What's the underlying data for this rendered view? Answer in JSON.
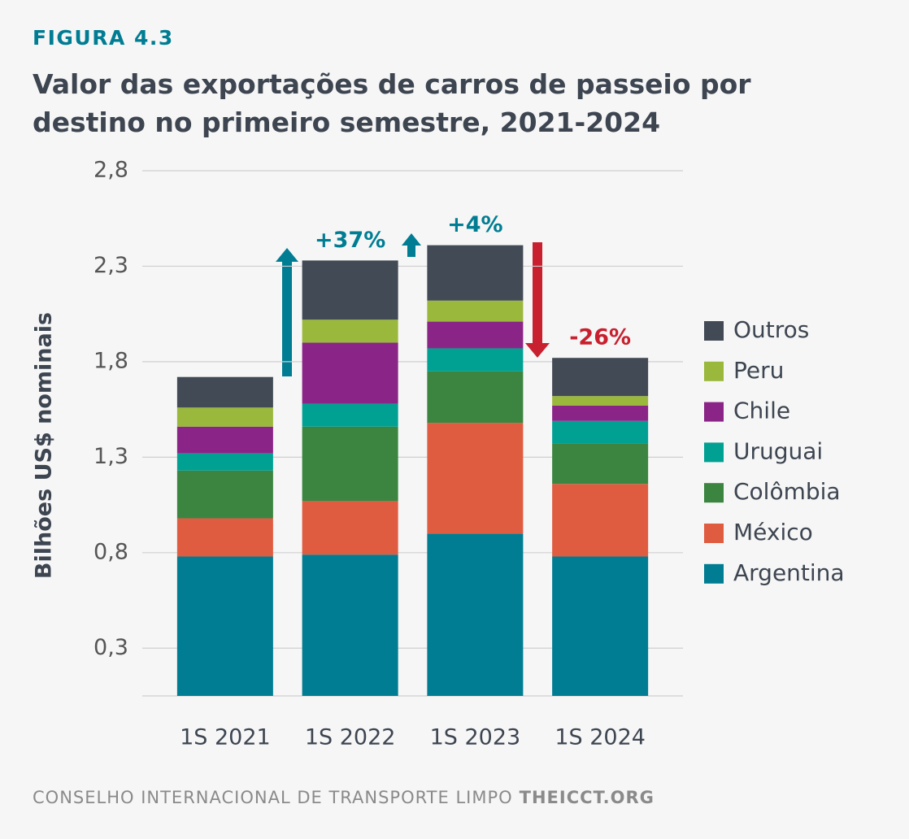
{
  "label": "FIGURA 4.3",
  "footer": {
    "source": "CONSELHO INTERNACIONAL DE TRANSPORTE LIMPO",
    "site": "THEICCT.ORG"
  },
  "chart_data": {
    "type": "stacked_bar",
    "title": "Valor das exportações de carros de passeio por destino no primeiro semestre, 2021-2024",
    "ylabel": "Bilhões US$ nominais",
    "categories": [
      "1S 2021",
      "1S 2022",
      "1S 2023",
      "1S 2024"
    ],
    "series": [
      {
        "name": "Argentina",
        "color": "#007d93",
        "values": [
          0.78,
          0.79,
          0.9,
          0.78
        ]
      },
      {
        "name": "México",
        "color": "#e05c41",
        "values": [
          0.2,
          0.28,
          0.58,
          0.38
        ]
      },
      {
        "name": "Colômbia",
        "color": "#3b8540",
        "values": [
          0.25,
          0.39,
          0.27,
          0.21
        ]
      },
      {
        "name": "Uruguai",
        "color": "#00a192",
        "values": [
          0.09,
          0.12,
          0.12,
          0.12
        ]
      },
      {
        "name": "Chile",
        "color": "#8a2587",
        "values": [
          0.14,
          0.32,
          0.14,
          0.08
        ]
      },
      {
        "name": "Peru",
        "color": "#9ab83b",
        "values": [
          0.1,
          0.12,
          0.11,
          0.05
        ]
      },
      {
        "name": "Outros",
        "color": "#424a55",
        "values": [
          0.16,
          0.31,
          0.29,
          0.2
        ]
      }
    ],
    "ylim": [
      0.05,
      2.8
    ],
    "yticks": [
      {
        "value": 0.3,
        "label": "0,3"
      },
      {
        "value": 0.8,
        "label": "0,8"
      },
      {
        "value": 1.3,
        "label": "1,3"
      },
      {
        "value": 1.8,
        "label": "1,8"
      },
      {
        "value": 2.3,
        "label": "2,3"
      },
      {
        "value": 2.8,
        "label": "2,8"
      }
    ],
    "grid": true,
    "legend": "right",
    "annotations": [
      {
        "text": "+37%",
        "color": "#007d93"
      },
      {
        "text": "+4%",
        "color": "#007d93"
      },
      {
        "text": "-26%",
        "color": "#c8202f"
      }
    ]
  }
}
